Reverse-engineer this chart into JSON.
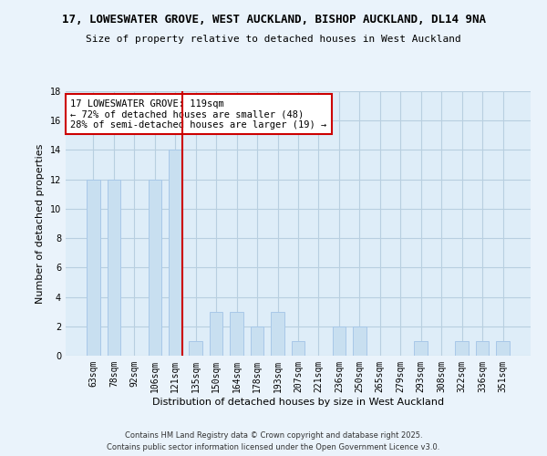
{
  "title": "17, LOWESWATER GROVE, WEST AUCKLAND, BISHOP AUCKLAND, DL14 9NA",
  "subtitle": "Size of property relative to detached houses in West Auckland",
  "xlabel": "Distribution of detached houses by size in West Auckland",
  "ylabel": "Number of detached properties",
  "bar_color": "#c8dff0",
  "bar_edge_color": "#a8c8e8",
  "highlight_line_color": "#cc0000",
  "annotation_title": "17 LOWESWATER GROVE: 119sqm",
  "annotation_line1": "← 72% of detached houses are smaller (48)",
  "annotation_line2": "28% of semi-detached houses are larger (19) →",
  "categories": [
    "63sqm",
    "78sqm",
    "92sqm",
    "106sqm",
    "121sqm",
    "135sqm",
    "150sqm",
    "164sqm",
    "178sqm",
    "193sqm",
    "207sqm",
    "221sqm",
    "236sqm",
    "250sqm",
    "265sqm",
    "279sqm",
    "293sqm",
    "308sqm",
    "322sqm",
    "336sqm",
    "351sqm"
  ],
  "values": [
    12,
    12,
    0,
    12,
    14,
    1,
    3,
    3,
    2,
    3,
    1,
    0,
    2,
    2,
    0,
    0,
    1,
    0,
    1,
    1,
    1
  ],
  "highlight_bar_index": 4,
  "ylim": [
    0,
    18
  ],
  "yticks": [
    0,
    2,
    4,
    6,
    8,
    10,
    12,
    14,
    16,
    18
  ],
  "background_color": "#eaf3fb",
  "plot_bg_color": "#deedf8",
  "grid_color": "#b8cfe0",
  "footer1": "Contains HM Land Registry data © Crown copyright and database right 2025.",
  "footer2": "Contains public sector information licensed under the Open Government Licence v3.0."
}
